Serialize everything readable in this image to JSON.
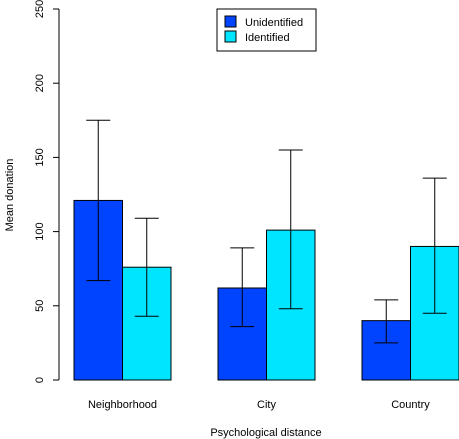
{
  "chart_data": {
    "type": "bar",
    "xlabel": "Psychological distance",
    "ylabel": "Mean donation",
    "ylim": [
      0,
      250
    ],
    "yticks": [
      0,
      50,
      100,
      150,
      200,
      250
    ],
    "categories": [
      "Neighborhood",
      "City",
      "Country"
    ],
    "series": [
      {
        "name": "Unidentified",
        "color": "#0044ff",
        "values": [
          121,
          62,
          40
        ],
        "error_low": [
          67,
          36,
          25
        ],
        "error_high": [
          175,
          89,
          54
        ]
      },
      {
        "name": "Identified",
        "color": "#00e5ff",
        "values": [
          76,
          101,
          90
        ],
        "error_low": [
          43,
          48,
          45
        ],
        "error_high": [
          109,
          155,
          136
        ]
      }
    ],
    "legend_position": "top-center",
    "grid": false
  }
}
